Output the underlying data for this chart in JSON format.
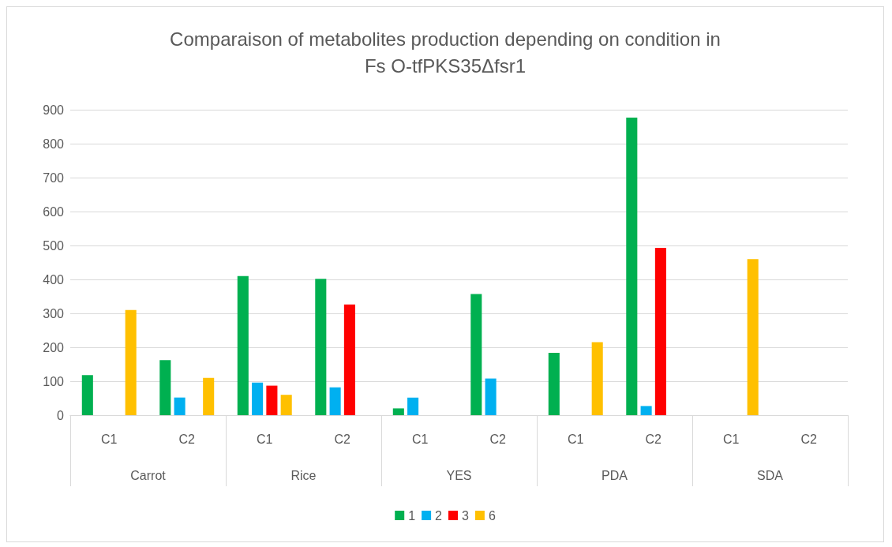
{
  "chart_data": {
    "type": "bar",
    "title": "Comparaison of metabolites production depending on condition in\nFs O-tfPKS35Δfsr1",
    "categories": [
      "C1",
      "C2",
      "C1",
      "C2",
      "C1",
      "C2",
      "C1",
      "C2",
      "C1",
      "C2"
    ],
    "annotations": [
      "Carrot",
      "Rice",
      "YES",
      "PDA",
      "SDA"
    ],
    "series": [
      {
        "name": "1",
        "color": "#00b050",
        "values": [
          118,
          162,
          410,
          402,
          20,
          357,
          184,
          877,
          null,
          null
        ]
      },
      {
        "name": "2",
        "color": "#00b0f0",
        "values": [
          null,
          52,
          96,
          82,
          52,
          108,
          null,
          27,
          null,
          null
        ]
      },
      {
        "name": "3",
        "color": "#ff0000",
        "values": [
          null,
          null,
          87,
          326,
          null,
          null,
          null,
          493,
          null,
          null
        ]
      },
      {
        "name": "6",
        "color": "#ffc000",
        "values": [
          310,
          110,
          60,
          null,
          null,
          null,
          215,
          null,
          460,
          null
        ]
      }
    ],
    "ylim": [
      0,
      900
    ],
    "yticks": [
      0,
      100,
      200,
      300,
      400,
      500,
      600,
      700,
      800,
      900
    ],
    "grid": "y",
    "legend": "bottom"
  }
}
